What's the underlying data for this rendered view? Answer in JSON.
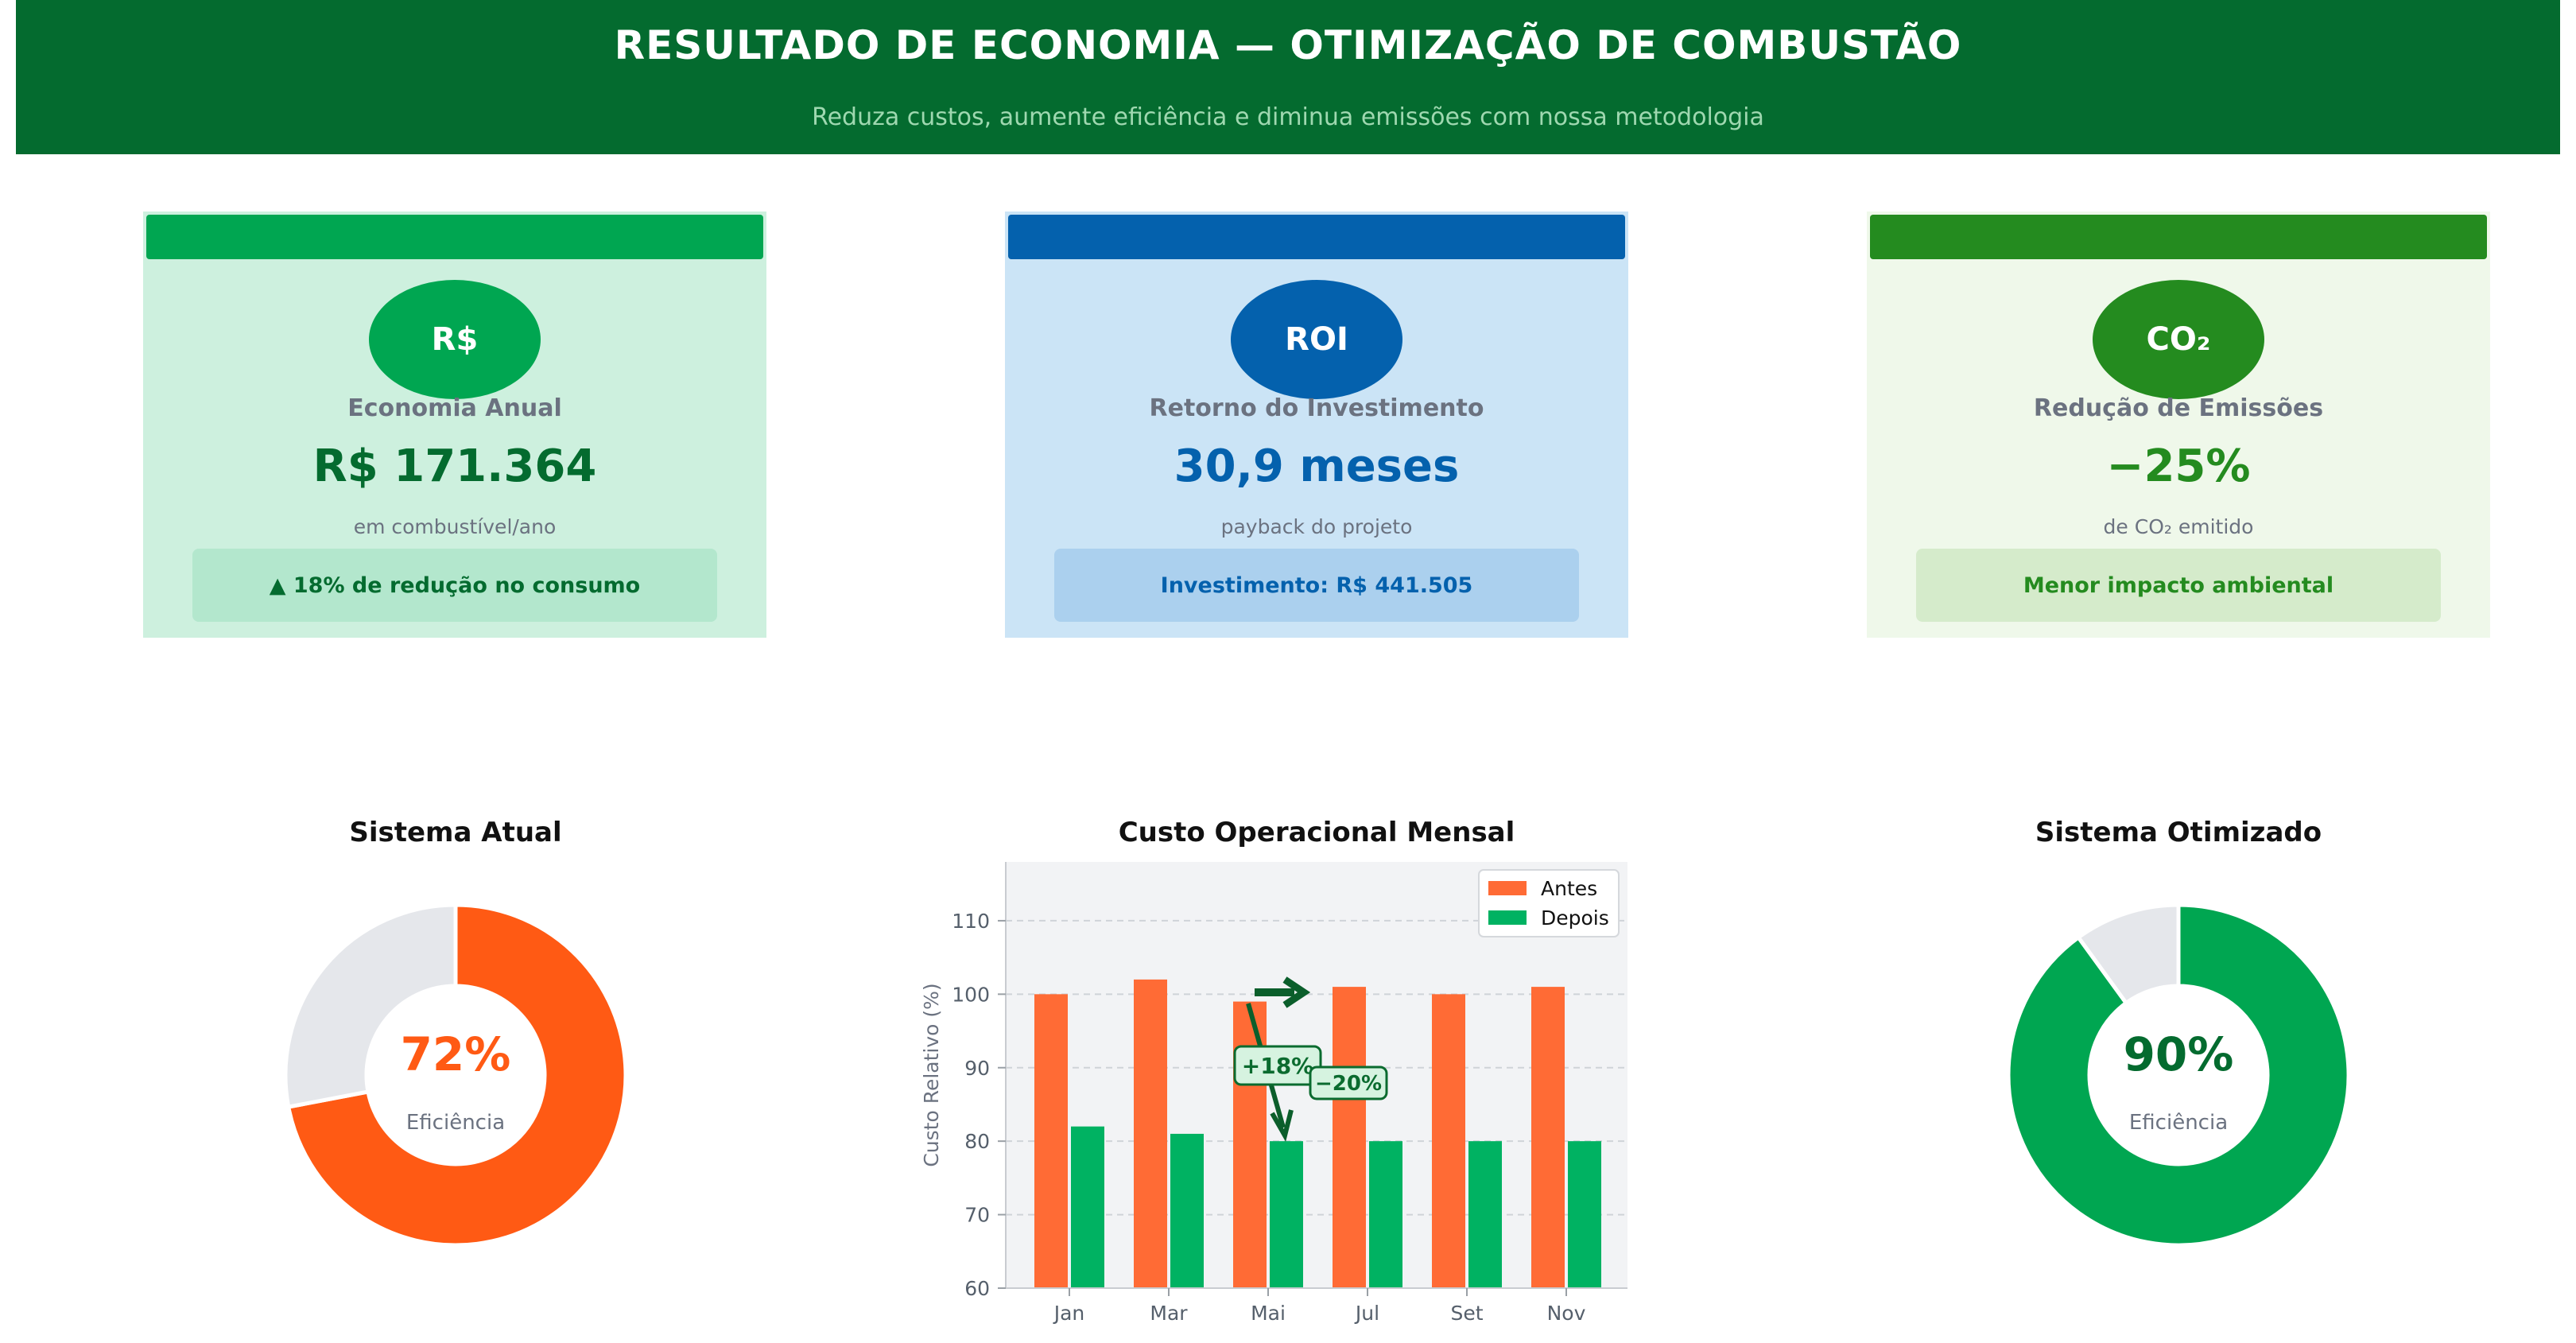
{
  "header": {
    "title": "RESULTADO DE ECONOMIA — OTIMIZAÇÃO DE COMBUSTÃO",
    "subtitle": "Reduza custos, aumente eficiência e diminua emissões com nossa metodologia",
    "color": "#046b2f"
  },
  "cards": [
    {
      "badge": "R$",
      "label": "Economia Anual",
      "value": "R$ 171.364",
      "note": "em combustível/ano",
      "pill": "▲ 18% de redução no consumo",
      "accent": "#00a651",
      "bg": "#cdf0de",
      "pill_bg": "#b3e7cd",
      "text_color": "#046b2f"
    },
    {
      "badge": "ROI",
      "label": "Retorno do Investimento",
      "value": "30,9 meses",
      "note": "payback do projeto",
      "pill": "Investimento: R$ 441.505",
      "accent": "#0461ad",
      "bg": "#cbe4f6",
      "pill_bg": "#abd0ee",
      "text_color": "#0461ad"
    },
    {
      "badge": "CO₂",
      "label": "Redução de Emissões",
      "value": "−25%",
      "note": "de CO₂ emitido",
      "pill": "Menor impacto ambiental",
      "accent": "#248b1f",
      "bg": "#eff8ea",
      "pill_bg": "#d5ebcb",
      "text_color": "#248b1f"
    }
  ],
  "chart_data": [
    {
      "type": "pie",
      "title": "Sistema Atual",
      "values": [
        72,
        28
      ],
      "center_value": "72%",
      "center_caption": "Eficiência",
      "colors": [
        "#ff5a14",
        "#e5e7eb"
      ]
    },
    {
      "type": "bar",
      "title": "Custo Operacional Mensal",
      "categories": [
        "Jan",
        "Mar",
        "Mai",
        "Jul",
        "Set",
        "Nov"
      ],
      "series": [
        {
          "name": "Antes",
          "values": [
            100,
            102,
            99,
            101,
            100,
            101
          ],
          "color": "#ff6b35"
        },
        {
          "name": "Depois",
          "values": [
            82,
            81,
            80,
            80,
            80,
            80
          ],
          "color": "#00b262"
        }
      ],
      "xlabel": "",
      "ylabel": "Custo Relativo (%)",
      "ylim": [
        60,
        118
      ],
      "yticks": [
        60,
        70,
        80,
        90,
        100,
        110
      ],
      "grid": true,
      "legend": "top-right",
      "annotations": [
        {
          "text": "+18%",
          "x": "Mai",
          "y": 90
        },
        {
          "text": "−20%",
          "x": "Jul",
          "y": 88
        }
      ]
    },
    {
      "type": "pie",
      "title": "Sistema Otimizado",
      "values": [
        90,
        10
      ],
      "center_value": "90%",
      "center_caption": "Eficiência",
      "colors": [
        "#00a651",
        "#e5e7eb"
      ]
    }
  ]
}
